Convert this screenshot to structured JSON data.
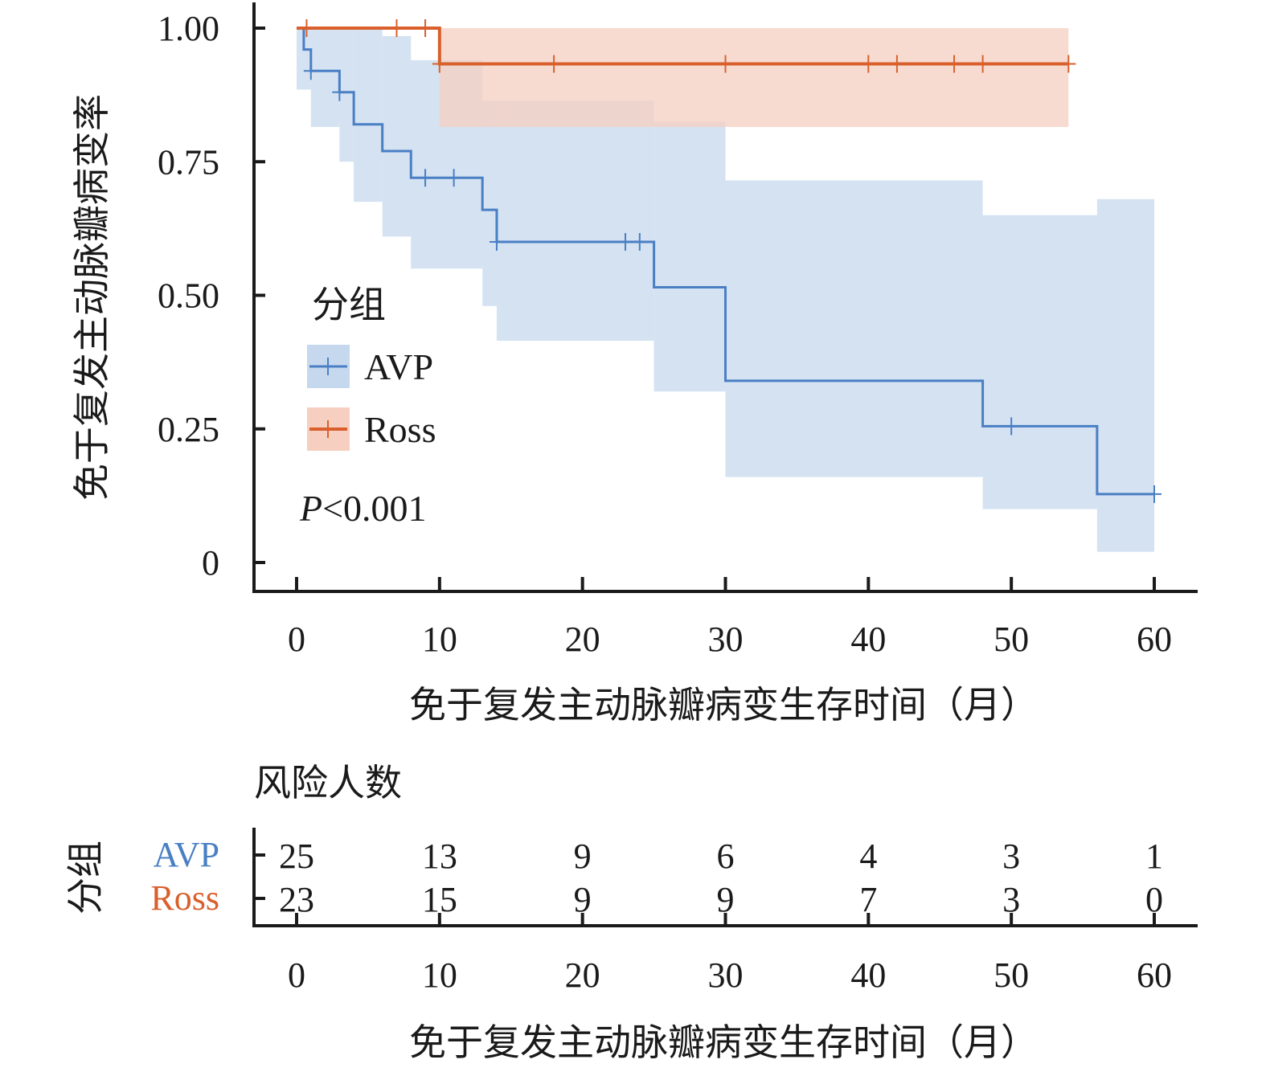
{
  "chart_data": {
    "type": "line",
    "subtype": "kaplan-meier",
    "ylabel": "免于复发主动脉瓣病变率",
    "xlabel": "免于复发主动脉瓣病变生存时间（月）",
    "xlim": [
      0,
      60
    ],
    "ylim": [
      0,
      1
    ],
    "x_ticks": [
      0,
      10,
      20,
      30,
      40,
      50,
      60
    ],
    "y_ticks": [
      0,
      0.25,
      0.5,
      0.75,
      1.0
    ],
    "y_tick_labels": [
      "0",
      "0.25",
      "0.50",
      "0.75",
      "1.00"
    ],
    "legend": {
      "title": "分组",
      "position": "center-left"
    },
    "p_value": {
      "symbol": "P",
      "text": "<0.001"
    },
    "series": [
      {
        "name": "AVP",
        "color": "#4a7fc4",
        "ci_color": "#c6d8ee",
        "steps": [
          [
            0,
            1.0
          ],
          [
            0.5,
            0.96
          ],
          [
            1,
            0.92
          ],
          [
            3,
            0.88
          ],
          [
            4,
            0.82
          ],
          [
            6,
            0.77
          ],
          [
            8,
            0.72
          ],
          [
            13,
            0.66
          ],
          [
            14,
            0.6
          ],
          [
            25,
            0.515
          ],
          [
            30,
            0.34
          ],
          [
            48,
            0.255
          ],
          [
            56,
            0.128
          ]
        ],
        "end": 60,
        "ci_lower": [
          [
            0,
            0.885
          ],
          [
            1,
            0.815
          ],
          [
            3,
            0.75
          ],
          [
            4,
            0.675
          ],
          [
            6,
            0.61
          ],
          [
            8,
            0.55
          ],
          [
            13,
            0.48
          ],
          [
            14,
            0.415
          ],
          [
            25,
            0.32
          ],
          [
            30,
            0.16
          ],
          [
            48,
            0.1
          ],
          [
            56,
            0.02
          ]
        ],
        "ci_upper": [
          [
            0,
            1.0
          ],
          [
            6,
            0.985
          ],
          [
            8,
            0.94
          ],
          [
            13,
            0.865
          ],
          [
            25,
            0.825
          ],
          [
            30,
            0.715
          ],
          [
            48,
            0.65
          ],
          [
            56,
            0.68
          ]
        ],
        "ci_end": 60,
        "censored": [
          [
            1,
            0.92
          ],
          [
            3,
            0.88
          ],
          [
            9,
            0.72
          ],
          [
            11,
            0.72
          ],
          [
            14,
            0.6
          ],
          [
            23,
            0.6
          ],
          [
            24,
            0.6
          ],
          [
            50,
            0.255
          ],
          [
            60,
            0.128
          ]
        ]
      },
      {
        "name": "Ross",
        "color": "#d9602c",
        "ci_color": "#f6cfc0",
        "steps": [
          [
            0,
            1.0
          ],
          [
            10,
            0.933
          ]
        ],
        "end": 54,
        "ci_lower": [
          [
            10,
            0.815
          ]
        ],
        "ci_upper": [
          [
            10,
            1.0
          ]
        ],
        "ci_end": 54,
        "censored": [
          [
            0.7,
            1.0
          ],
          [
            7,
            1.0
          ],
          [
            9,
            1.0
          ],
          [
            10,
            0.933
          ],
          [
            18,
            0.933
          ],
          [
            30,
            0.933
          ],
          [
            40,
            0.933
          ],
          [
            42,
            0.933
          ],
          [
            46,
            0.933
          ],
          [
            48,
            0.933
          ],
          [
            54,
            0.933
          ]
        ]
      }
    ],
    "risk_table": {
      "title": "风险人数",
      "group_label": "分组",
      "times": [
        0,
        10,
        20,
        30,
        40,
        50,
        60
      ],
      "rows": [
        {
          "name": "AVP",
          "color": "#4a7fc4",
          "values": [
            25,
            13,
            9,
            6,
            4,
            3,
            1
          ]
        },
        {
          "name": "Ross",
          "color": "#d9602c",
          "values": [
            23,
            15,
            9,
            9,
            7,
            3,
            0
          ]
        }
      ],
      "xlabel": "免于复发主动脉瓣病变生存时间（月）"
    }
  }
}
